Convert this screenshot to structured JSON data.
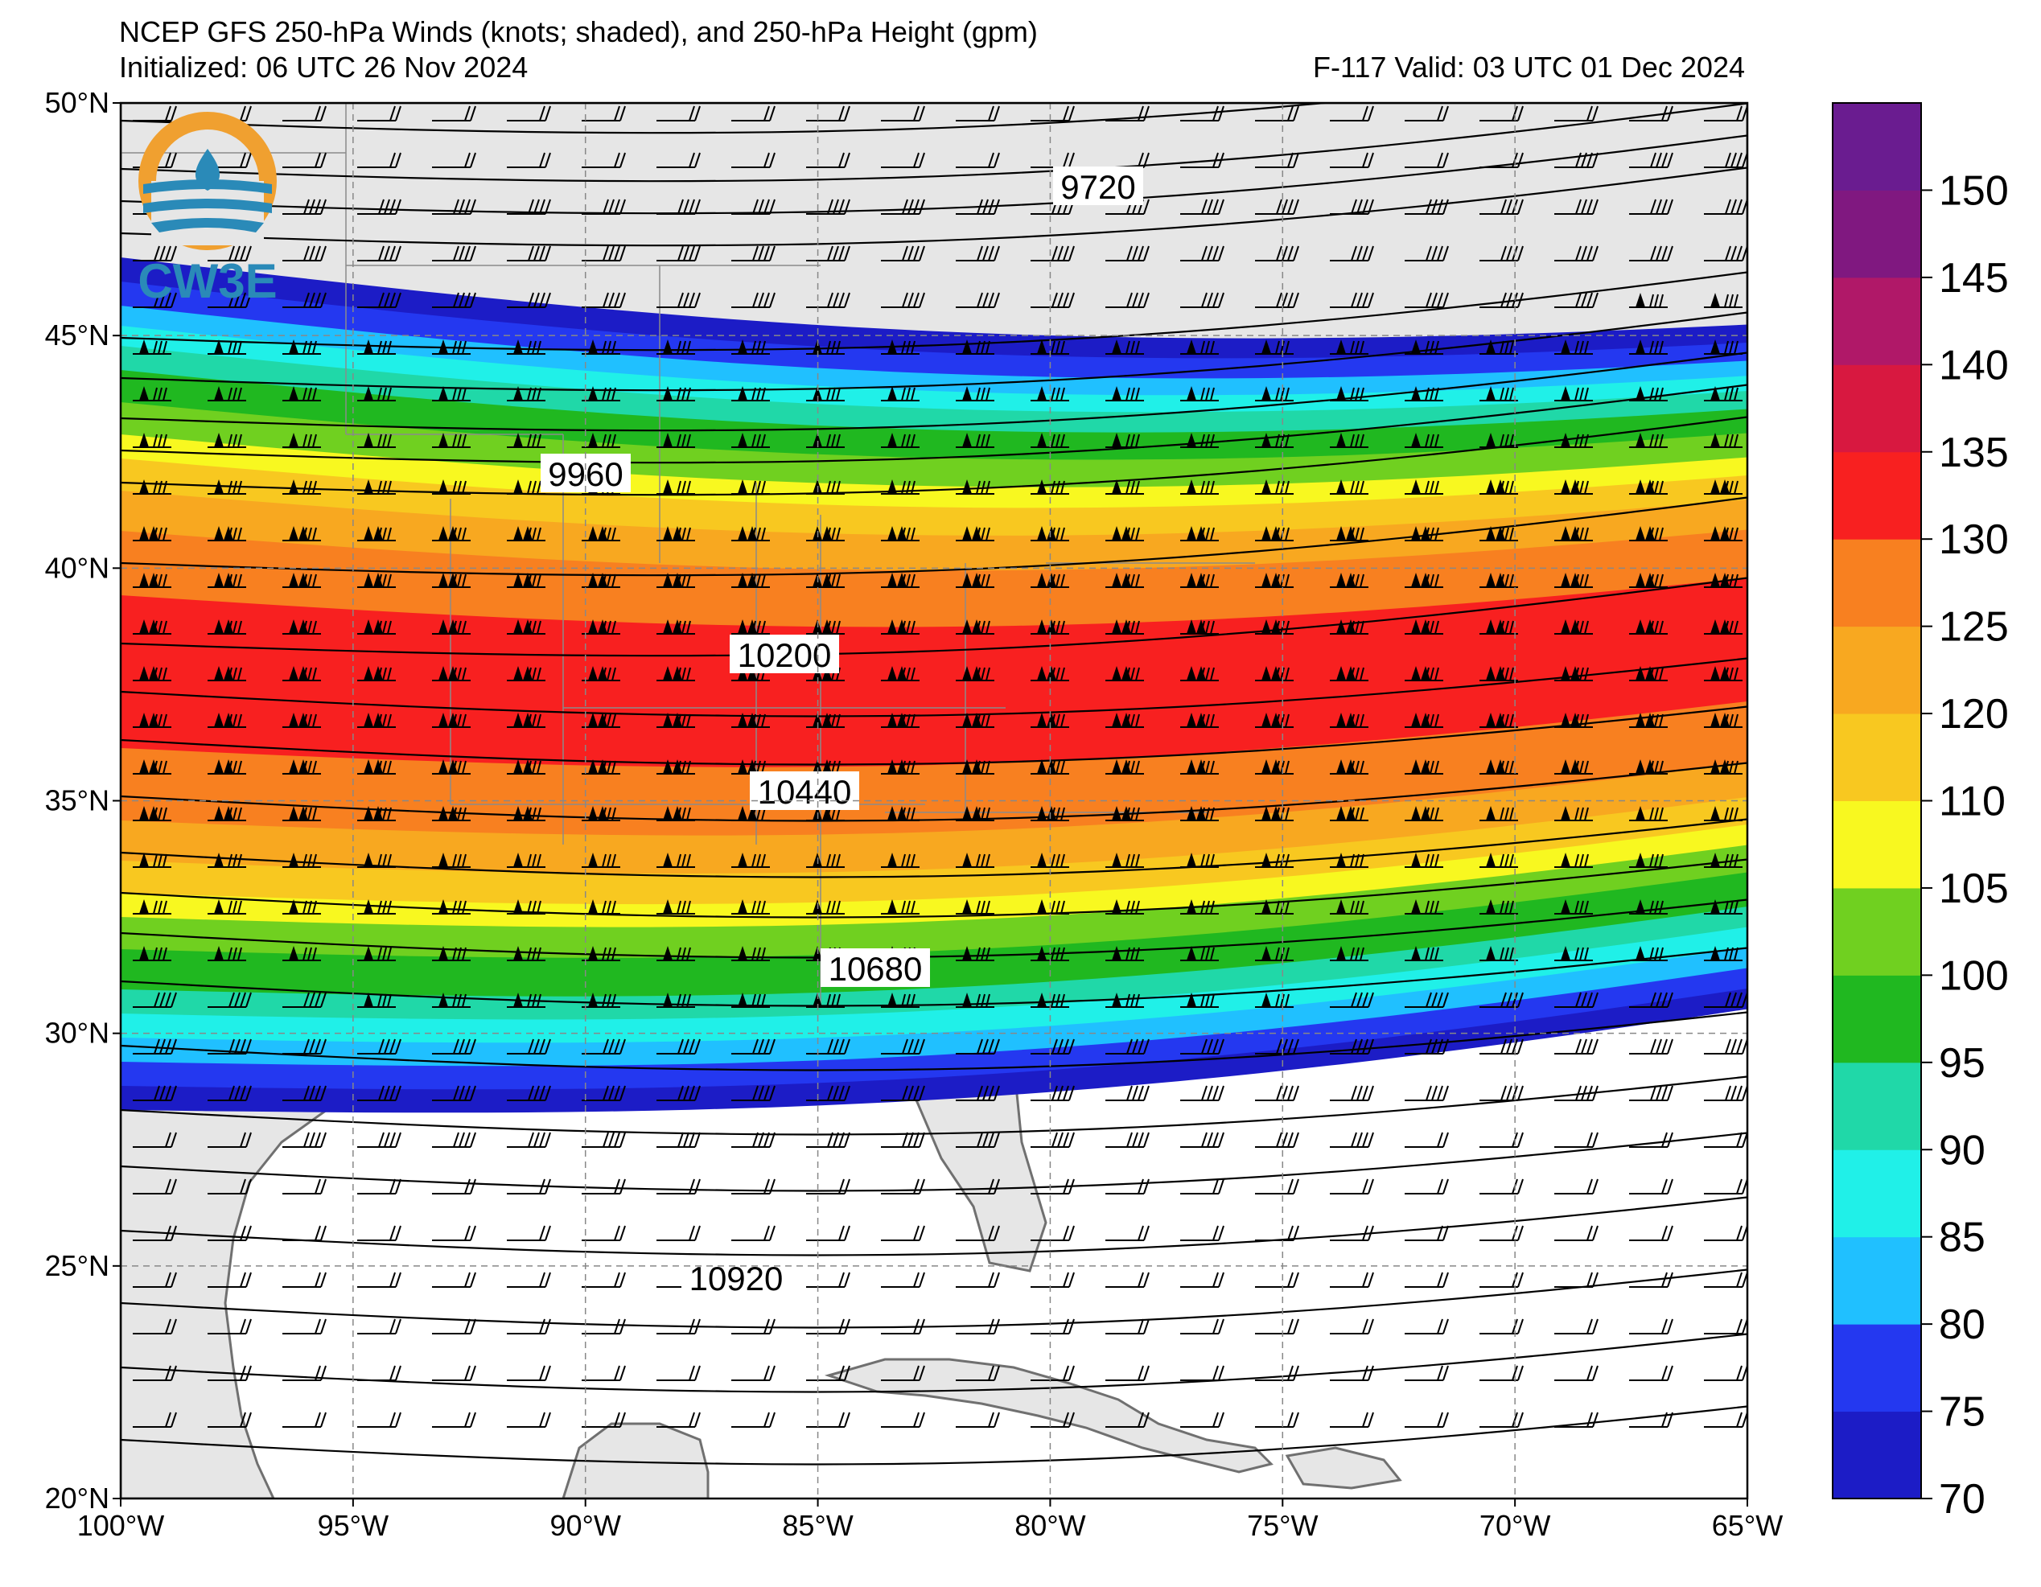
{
  "header": {
    "title": "NCEP GFS 250-hPa Winds (knots; shaded), and 250-hPa Height (gpm)",
    "initialized": "Initialized: 06 UTC 26 Nov 2024",
    "valid": "F-117  Valid: 03 UTC 01 Dec 2024"
  },
  "logo": {
    "text": "CW3E",
    "icon": "cw3e-logo-icon",
    "colors": {
      "ring": "#f0a030",
      "water": "#2a8ab8"
    }
  },
  "map": {
    "extent": {
      "lon_min": -100,
      "lon_max": -65,
      "lat_min": 20,
      "lat_max": 50
    },
    "lat_ticks": [
      "50°N",
      "45°N",
      "40°N",
      "35°N",
      "30°N",
      "25°N",
      "20°N"
    ],
    "lon_ticks": [
      "100°W",
      "95°W",
      "90°W",
      "85°W",
      "80°W",
      "75°W",
      "70°W",
      "65°W"
    ],
    "contour_labels": [
      "9720",
      "9960",
      "10200",
      "10440",
      "10680",
      "10920"
    ],
    "land_color": "#e6e6e6",
    "ocean_color": "#ffffff"
  },
  "colorbar": {
    "levels": [
      70,
      75,
      80,
      85,
      90,
      95,
      100,
      105,
      110,
      120,
      125,
      130,
      135,
      140,
      145,
      150
    ],
    "tick_labels": [
      "70",
      "75",
      "80",
      "85",
      "90",
      "95",
      "100",
      "105",
      "110",
      "120",
      "125",
      "130",
      "135",
      "140",
      "145",
      "150"
    ],
    "colors": [
      "#1c1cc6",
      "#2438f0",
      "#20c0ff",
      "#20f0e8",
      "#20d8a8",
      "#20b820",
      "#70d020",
      "#f8f820",
      "#f8c820",
      "#f8a820",
      "#f88020",
      "#f82020",
      "#d81840",
      "#b01868",
      "#801880",
      "#6a1c90"
    ]
  }
}
